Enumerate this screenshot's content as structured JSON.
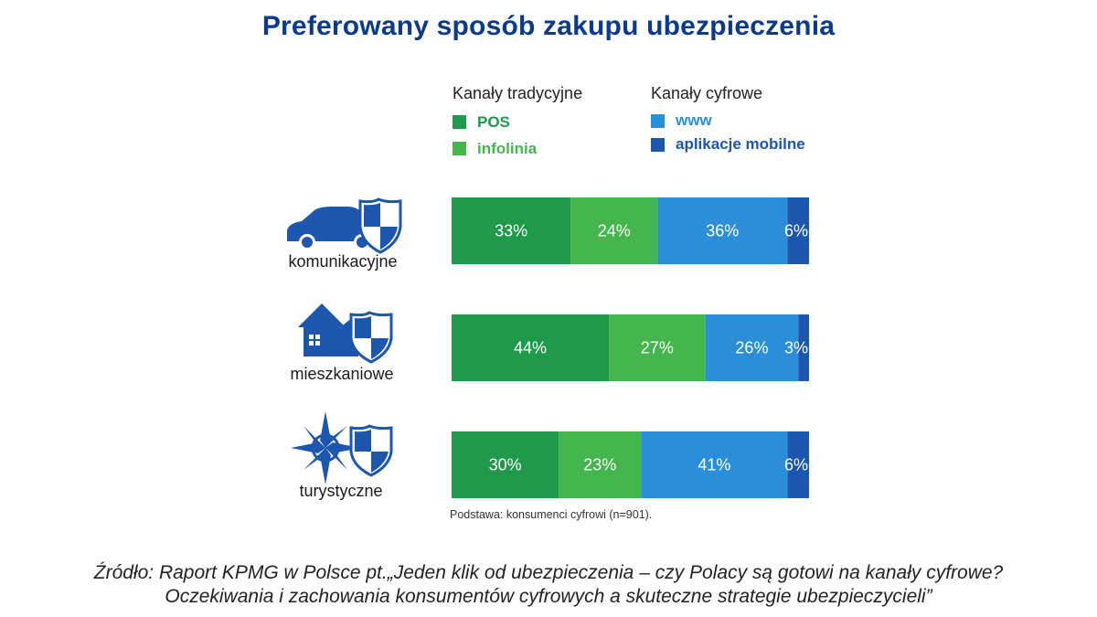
{
  "title": "Preferowany sposób zakupu ubezpieczenia",
  "legend": {
    "traditional": {
      "heading": "Kanały tradycyjne",
      "items": [
        {
          "label": "POS",
          "color": "#1e9a4a"
        },
        {
          "label": "infolinia",
          "color": "#45b54e"
        }
      ]
    },
    "digital": {
      "heading": "Kanały cyfrowe",
      "items": [
        {
          "label": "www",
          "color": "#2a8fd8"
        },
        {
          "label": "aplikacje mobilne",
          "color": "#1d56ad"
        }
      ]
    }
  },
  "rows": [
    {
      "label": "komunikacyjne",
      "icon": "car-shield-icon"
    },
    {
      "label": "mieszkaniowe",
      "icon": "house-shield-icon"
    },
    {
      "label": "turystyczne",
      "icon": "compass-shield-icon"
    }
  ],
  "chart_data": {
    "type": "bar",
    "orientation": "horizontal",
    "stacked": true,
    "percent": true,
    "categories": [
      "komunikacyjne",
      "mieszkaniowe",
      "turystyczne"
    ],
    "series": [
      {
        "name": "POS",
        "color": "#1e9a4a",
        "values": [
          33,
          44,
          30
        ]
      },
      {
        "name": "infolinia",
        "color": "#45b54e",
        "values": [
          24,
          27,
          23
        ]
      },
      {
        "name": "www",
        "color": "#2a8fd8",
        "values": [
          36,
          26,
          41
        ]
      },
      {
        "name": "aplikacje mobilne",
        "color": "#1d56ad",
        "values": [
          6,
          3,
          6
        ]
      }
    ],
    "value_labels": [
      [
        "33%",
        "24%",
        "36%",
        "6%"
      ],
      [
        "44%",
        "27%",
        "26%",
        "3%"
      ],
      [
        "30%",
        "23%",
        "41%",
        "6%"
      ]
    ]
  },
  "footnote": "Podstawa: konsumenci cyfrowi (n=901).",
  "source": {
    "line1": "Źródło: Raport KPMG w Polsce pt.„Jeden klik od ubezpieczenia – czy Polacy są gotowi na kanały cyfrowe?",
    "line2": "Oczekiwania i zachowania konsumentów cyfrowych a skuteczne strategie ubezpieczycieli”"
  }
}
